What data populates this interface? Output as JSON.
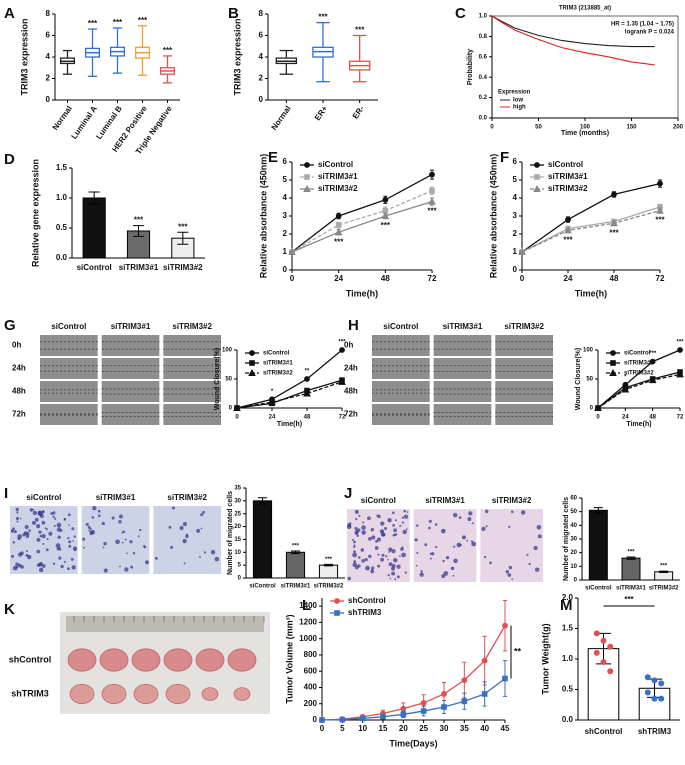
{
  "chart_data": [
    {
      "type": "box",
      "panel": "A",
      "ylabel": "TRIM3 expression",
      "ylim": [
        0,
        8
      ],
      "yticks": [
        0,
        2,
        4,
        6,
        8
      ],
      "boxes": [
        {
          "label": "Normal",
          "min": 2.4,
          "q1": 3.4,
          "median": 3.6,
          "q3": 3.9,
          "max": 4.6,
          "color": "#222222"
        },
        {
          "label": "Luminal A",
          "min": 2.2,
          "q1": 4.0,
          "median": 4.4,
          "q3": 4.8,
          "max": 6.6,
          "color": "#2f6fd6",
          "significance": "***"
        },
        {
          "label": "Luminal B",
          "min": 2.5,
          "q1": 4.1,
          "median": 4.5,
          "q3": 4.9,
          "max": 6.7,
          "color": "#2f6fd6",
          "significance": "***"
        },
        {
          "label": "HER2 Positive",
          "min": 2.3,
          "q1": 3.9,
          "median": 4.4,
          "q3": 4.9,
          "max": 6.9,
          "color": "#f0a030",
          "significance": "***"
        },
        {
          "label": "Triple Negative",
          "min": 1.6,
          "q1": 2.4,
          "median": 2.7,
          "q3": 3.0,
          "max": 4.1,
          "color": "#d9534f",
          "significance": "***"
        }
      ]
    },
    {
      "type": "box",
      "panel": "B",
      "ylabel": "TRIM3 expression",
      "ylim": [
        0,
        8
      ],
      "yticks": [
        0,
        2,
        4,
        6,
        8
      ],
      "boxes": [
        {
          "label": "Normal",
          "min": 2.4,
          "q1": 3.4,
          "median": 3.6,
          "q3": 3.9,
          "max": 4.6,
          "color": "#222222"
        },
        {
          "label": "ER+",
          "min": 1.7,
          "q1": 4.0,
          "median": 4.5,
          "q3": 4.9,
          "max": 7.2,
          "color": "#2f6fd6",
          "significance": "***"
        },
        {
          "label": "ER-",
          "min": 1.7,
          "q1": 2.8,
          "median": 3.2,
          "q3": 3.6,
          "max": 6.0,
          "color": "#d9534f",
          "significance": "***"
        }
      ]
    },
    {
      "type": "km",
      "panel": "C",
      "title": "TRIM3 (213885_at)",
      "annotations": [
        "HR = 1.35 (1.04 − 1.75)",
        "logrank P = 0.024"
      ],
      "ylabel": "Probability",
      "xlabel": "Time (months)",
      "xlim": [
        0,
        200
      ],
      "xticks": [
        0,
        50,
        100,
        150,
        200
      ],
      "ylim": [
        0,
        1
      ],
      "yticks": [
        {
          "value": 0,
          "label": "0.0"
        },
        {
          "value": 0.2,
          "label": "0.2"
        },
        {
          "value": 0.4,
          "label": "0.4"
        },
        {
          "value": 0.6,
          "label": "0.6"
        },
        {
          "value": 0.8,
          "label": "0.8"
        },
        {
          "value": 1,
          "label": "1.0"
        }
      ],
      "x": [
        0,
        10,
        25,
        50,
        75,
        100,
        125,
        150,
        175
      ],
      "legend_title": "Expression",
      "legend": "lower left",
      "series": [
        {
          "name": "low",
          "color": "#222222",
          "values": [
            1,
            0.95,
            0.88,
            0.81,
            0.76,
            0.73,
            0.71,
            0.7,
            0.7
          ]
        },
        {
          "name": "high",
          "color": "#e02020",
          "values": [
            1,
            0.94,
            0.86,
            0.77,
            0.69,
            0.64,
            0.6,
            0.55,
            0.52
          ]
        }
      ]
    },
    {
      "type": "bar",
      "panel": "D",
      "ylabel": "Relative gene expression",
      "ylim": [
        0,
        1.5
      ],
      "yticks": [
        {
          "value": 0,
          "label": "0.0"
        },
        {
          "value": 0.5,
          "label": "0.5"
        },
        {
          "value": 1,
          "label": "1.0"
        },
        {
          "value": 1.5,
          "label": "1.5"
        }
      ],
      "bars": [
        {
          "label": "siControl",
          "value": 1.0,
          "error": 0.1,
          "color": "#111111"
        },
        {
          "label": "siTRIM3#1",
          "value": 0.45,
          "error": 0.09,
          "color": "#6b6b6b",
          "significance": "***"
        },
        {
          "label": "siTRIM3#2",
          "value": 0.33,
          "error": 0.1,
          "color": "#eeeeee",
          "significance": "***"
        }
      ]
    },
    {
      "type": "line",
      "panel": "E",
      "ylabel": "Relative absorbance (450nm)",
      "xlabel": "Time(h)",
      "xlim": [
        0,
        72
      ],
      "xticks": [
        0,
        24,
        48,
        72
      ],
      "ylim": [
        0,
        6
      ],
      "yticks": [
        0,
        1,
        2,
        3,
        4,
        5,
        6
      ],
      "x": [
        0,
        24,
        48,
        72
      ],
      "legend": "upper left",
      "series": [
        {
          "name": "siControl",
          "color": "#111111",
          "line_style": "solid",
          "marker": "circle",
          "values": [
            1,
            3.0,
            3.9,
            5.3
          ],
          "errors": [
            0.05,
            0.15,
            0.2,
            0.25
          ]
        },
        {
          "name": "siTRIM3#1",
          "color": "#aaaaaa",
          "line_style": "dashed",
          "marker": "square",
          "values": [
            1,
            2.5,
            3.3,
            4.4
          ],
          "errors": [
            0.05,
            0.15,
            0.2,
            0.2
          ]
        },
        {
          "name": "siTRIM3#2",
          "color": "#888888",
          "line_style": "solid",
          "marker": "triangle",
          "values": [
            1,
            2.1,
            3.0,
            3.8
          ],
          "errors": [
            0.05,
            0.15,
            0.15,
            0.2
          ]
        }
      ],
      "annotation_position": "below",
      "annotations": [
        {
          "x": 24,
          "text": "***"
        },
        {
          "x": 48,
          "text": "***"
        },
        {
          "x": 72,
          "text": "***"
        }
      ]
    },
    {
      "type": "line",
      "panel": "F",
      "ylabel": "Relative absorbance (450nm)",
      "xlabel": "Time(h)",
      "xlim": [
        0,
        72
      ],
      "xticks": [
        0,
        24,
        48,
        72
      ],
      "ylim": [
        0,
        6
      ],
      "yticks": [
        0,
        1,
        2,
        3,
        4,
        5,
        6
      ],
      "x": [
        0,
        24,
        48,
        72
      ],
      "legend": "upper left",
      "series": [
        {
          "name": "siControl",
          "color": "#111111",
          "line_style": "solid",
          "marker": "circle",
          "values": [
            1,
            2.8,
            4.2,
            4.8
          ],
          "errors": [
            0.05,
            0.15,
            0.15,
            0.2
          ]
        },
        {
          "name": "siTRIM3#1",
          "color": "#aaaaaa",
          "line_style": "solid",
          "marker": "square",
          "values": [
            1,
            2.3,
            2.7,
            3.5
          ],
          "errors": [
            0.05,
            0.1,
            0.1,
            0.15
          ]
        },
        {
          "name": "siTRIM3#2",
          "color": "#888888",
          "line_style": "dashed",
          "marker": "triangle",
          "values": [
            1,
            2.2,
            2.6,
            3.3
          ],
          "errors": [
            0.05,
            0.1,
            0.1,
            0.15
          ]
        }
      ],
      "annotation_position": "below",
      "annotations": [
        {
          "x": 24,
          "text": "***"
        },
        {
          "x": 48,
          "text": "***"
        },
        {
          "x": 72,
          "text": "***"
        }
      ]
    },
    {
      "type": "line",
      "panel": "G",
      "image_columns": [
        "siControl",
        "siTRIM3#1",
        "siTRIM3#2"
      ],
      "image_rows": [
        "0h",
        "24h",
        "48h",
        "72h"
      ],
      "ylabel": "Wound Closure(%)",
      "xlabel": "Time(h)",
      "xlim": [
        0,
        72
      ],
      "xticks": [
        0,
        24,
        48,
        72
      ],
      "ylim": [
        0,
        100
      ],
      "yticks": [
        0,
        50,
        100
      ],
      "x": [
        0,
        24,
        48,
        72
      ],
      "legend": "upper left",
      "series": [
        {
          "name": "siControl",
          "color": "#111111",
          "line_style": "solid",
          "marker": "circle",
          "values": [
            0,
            15,
            50,
            100
          ]
        },
        {
          "name": "siTRIM3#1",
          "color": "#111111",
          "line_style": "solid",
          "marker": "square",
          "values": [
            0,
            8,
            30,
            48
          ]
        },
        {
          "name": "siTRIM3#2",
          "color": "#111111",
          "line_style": "dashed",
          "marker": "triangle",
          "values": [
            0,
            10,
            25,
            45
          ]
        }
      ],
      "annotation_position": "above",
      "annotations": [
        {
          "x": 24,
          "text": "*"
        },
        {
          "x": 48,
          "text": "**"
        },
        {
          "x": 72,
          "text": "***"
        }
      ]
    },
    {
      "type": "line",
      "panel": "H",
      "image_columns": [
        "siControl",
        "siTRIM3#1",
        "siTRIM3#2"
      ],
      "image_rows": [
        "0h",
        "24h",
        "48h",
        "72h"
      ],
      "ylabel": "Wound Closure(%)",
      "xlabel": "Time(h)",
      "xlim": [
        0,
        72
      ],
      "xticks": [
        0,
        24,
        48,
        72
      ],
      "ylim": [
        0,
        100
      ],
      "yticks": [
        0,
        50,
        100
      ],
      "x": [
        0,
        24,
        48,
        72
      ],
      "legend": "upper left",
      "series": [
        {
          "name": "siControl",
          "color": "#111111",
          "line_style": "solid",
          "marker": "circle",
          "values": [
            0,
            40,
            80,
            100
          ]
        },
        {
          "name": "siTRIM3#1",
          "color": "#111111",
          "line_style": "solid",
          "marker": "square",
          "values": [
            0,
            35,
            50,
            62
          ]
        },
        {
          "name": "siTRIM3#2",
          "color": "#111111",
          "line_style": "dashed",
          "marker": "triangle",
          "values": [
            0,
            32,
            48,
            58
          ]
        }
      ],
      "annotation_position": "above",
      "annotations": [
        {
          "x": 24,
          "text": "*"
        },
        {
          "x": 48,
          "text": "***"
        },
        {
          "x": 72,
          "text": "***"
        }
      ]
    },
    {
      "type": "bar",
      "panel": "I",
      "image_columns": [
        "siControl",
        "siTRIM3#1",
        "siTRIM3#2"
      ],
      "image_color": "#cdd3e6",
      "ylabel": "Number of migrated cells",
      "ylim": [
        0,
        35
      ],
      "yticks": [
        0,
        5,
        10,
        15,
        20,
        25,
        30,
        35
      ],
      "bars": [
        {
          "label": "siControl",
          "value": 30,
          "error": 1.2,
          "color": "#111111"
        },
        {
          "label": "siTRIM3#1",
          "value": 10,
          "error": 0.5,
          "color": "#666666",
          "significance": "***"
        },
        {
          "label": "siTRIM3#2",
          "value": 5,
          "error": 0.3,
          "color": "#eeeeee",
          "significance": "***"
        }
      ]
    },
    {
      "type": "bar",
      "panel": "J",
      "image_columns": [
        "siControl",
        "siTRIM3#1",
        "siTRIM3#2"
      ],
      "image_color": "#e6d6e6",
      "ylabel": "Number of migrated cells",
      "ylim": [
        0,
        60
      ],
      "yticks": [
        0,
        10,
        20,
        30,
        40,
        50,
        60
      ],
      "bars": [
        {
          "label": "siControl",
          "value": 51,
          "error": 2,
          "color": "#111111"
        },
        {
          "label": "siTRIM3#1",
          "value": 16,
          "error": 0.8,
          "color": "#666666",
          "significance": "***"
        },
        {
          "label": "siTRIM3#2",
          "value": 6,
          "error": 0.5,
          "color": "#eeeeee",
          "significance": "***"
        }
      ]
    },
    {
      "type": "image",
      "panel": "K",
      "row_labels": [
        "shControl",
        "shTRIM3"
      ]
    },
    {
      "type": "line",
      "panel": "L",
      "ylabel": "Tumor Volume (mm³)",
      "xlabel": "Time(Days)",
      "xlim": [
        0,
        45
      ],
      "xticks": [
        0,
        5,
        10,
        15,
        20,
        25,
        30,
        35,
        40,
        45
      ],
      "ylim": [
        0,
        1500
      ],
      "yticks": [
        0,
        200,
        400,
        600,
        800,
        1000,
        1200,
        1400
      ],
      "x": [
        0,
        5,
        10,
        15,
        20,
        25,
        30,
        35,
        40,
        45
      ],
      "legend": "upper left",
      "series": [
        {
          "name": "shControl",
          "color": "#e05050",
          "line_style": "solid",
          "marker": "circle",
          "values": [
            0,
            10,
            40,
            80,
            140,
            210,
            320,
            490,
            730,
            1160
          ],
          "errors": [
            0,
            5,
            20,
            40,
            70,
            100,
            140,
            220,
            300,
            310
          ]
        },
        {
          "name": "shTRIM3",
          "color": "#3a6fc4",
          "line_style": "solid",
          "marker": "square",
          "values": [
            0,
            5,
            20,
            40,
            70,
            110,
            160,
            230,
            320,
            510
          ],
          "errors": [
            0,
            3,
            10,
            20,
            40,
            60,
            80,
            100,
            150,
            220
          ]
        }
      ],
      "annotation_position": "bracket",
      "annotations": [
        {
          "x": 45,
          "text": "**"
        }
      ]
    },
    {
      "type": "bar",
      "panel": "M",
      "ylabel": "Tumor Weight(g)",
      "ylim": [
        0,
        2
      ],
      "yticks": [
        {
          "value": 0,
          "label": "0.0"
        },
        {
          "value": 0.5,
          "label": "0.5"
        },
        {
          "value": 1,
          "label": "1.0"
        },
        {
          "value": 1.5,
          "label": "1.5"
        },
        {
          "value": 2,
          "label": "2.0"
        }
      ],
      "significance": "***",
      "bars": [
        {
          "label": "shControl",
          "value": 1.17,
          "error": 0.25,
          "color": "#ffffff",
          "point_color": "#e05050",
          "points": [
            1.42,
            1.3,
            1.2,
            1.1,
            0.95,
            0.8
          ]
        },
        {
          "label": "shTRIM3",
          "value": 0.52,
          "error": 0.15,
          "color": "#ffffff",
          "point_color": "#3a6fc4",
          "points": [
            0.7,
            0.65,
            0.6,
            0.45,
            0.35,
            0.35
          ]
        }
      ]
    }
  ]
}
